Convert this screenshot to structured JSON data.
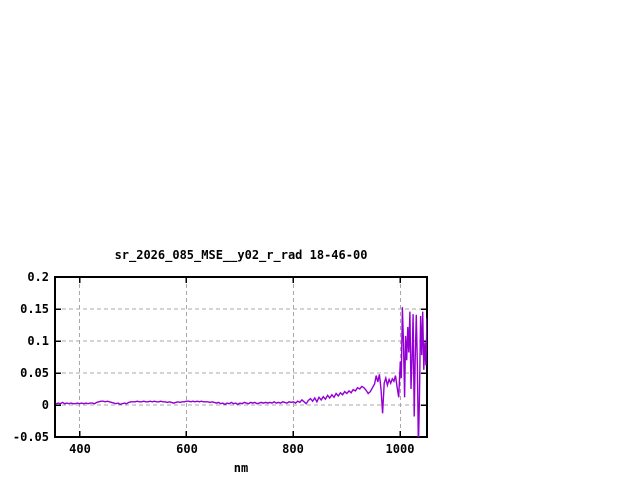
{
  "chart_data": {
    "type": "line",
    "title": "sr_2026_085_MSE__y02_r_rad 18-46-00",
    "xlabel": "nm",
    "ylabel": "",
    "xlim": [
      354,
      1050
    ],
    "ylim": [
      -0.05,
      0.2
    ],
    "grid": true,
    "legend": "none",
    "colors": {
      "line": "#9400d3",
      "grid": "#a8a8a8",
      "border": "#000000",
      "background": "#ffffff"
    },
    "x_ticks": {
      "values": [
        400,
        600,
        800,
        1000
      ],
      "labels": [
        "400",
        "600",
        "800",
        "1000"
      ]
    },
    "y_ticks": {
      "values": [
        0.2,
        0.15,
        0.1,
        0.05,
        0,
        -0.05
      ],
      "labels": [
        "0.2",
        "0.15",
        "0.1",
        "0.05",
        "0",
        "-0.05"
      ]
    },
    "series": [
      {
        "name": "sr_2026_085_MSE__y02_r_rad",
        "x": [
          356,
          360,
          364,
          368,
          372,
          376,
          380,
          384,
          388,
          392,
          396,
          400,
          404,
          408,
          412,
          416,
          420,
          424,
          428,
          432,
          436,
          440,
          444,
          448,
          452,
          456,
          460,
          464,
          468,
          472,
          476,
          480,
          484,
          488,
          492,
          496,
          500,
          504,
          508,
          512,
          516,
          520,
          524,
          528,
          532,
          536,
          540,
          544,
          548,
          552,
          556,
          560,
          564,
          568,
          572,
          576,
          580,
          584,
          588,
          592,
          596,
          600,
          604,
          608,
          612,
          616,
          620,
          624,
          628,
          632,
          636,
          640,
          644,
          648,
          652,
          656,
          660,
          664,
          668,
          672,
          676,
          680,
          684,
          688,
          692,
          696,
          700,
          704,
          708,
          712,
          716,
          720,
          724,
          728,
          732,
          736,
          740,
          744,
          748,
          752,
          756,
          760,
          764,
          768,
          772,
          776,
          780,
          784,
          788,
          792,
          796,
          800,
          804,
          808,
          812,
          816,
          820,
          824,
          828,
          832,
          836,
          840,
          844,
          848,
          852,
          856,
          860,
          864,
          868,
          872,
          876,
          880,
          884,
          888,
          892,
          896,
          900,
          904,
          908,
          912,
          916,
          920,
          924,
          928,
          932,
          936,
          940,
          944,
          948,
          952,
          955,
          958,
          961,
          964,
          967,
          970,
          973,
          976,
          979,
          982,
          985,
          988,
          991,
          994,
          997,
          1000,
          1002,
          1004,
          1006,
          1008,
          1010,
          1012,
          1014,
          1016,
          1018,
          1020,
          1022,
          1024,
          1026,
          1028,
          1030,
          1032,
          1034,
          1036,
          1038,
          1040,
          1042,
          1044,
          1046,
          1048,
          1050
        ],
        "y": [
          0.002,
          0.003,
          0.002,
          0.004,
          0.002,
          0.003,
          0.002,
          0.003,
          0.002,
          0.002,
          0.003,
          0.002,
          0.003,
          0.002,
          0.003,
          0.002,
          0.003,
          0.003,
          0.002,
          0.004,
          0.005,
          0.006,
          0.006,
          0.005,
          0.006,
          0.005,
          0.004,
          0.003,
          0.002,
          0.003,
          0.001,
          0.002,
          0.003,
          0.002,
          0.004,
          0.005,
          0.005,
          0.005,
          0.006,
          0.005,
          0.005,
          0.006,
          0.005,
          0.005,
          0.006,
          0.005,
          0.006,
          0.005,
          0.005,
          0.006,
          0.005,
          0.005,
          0.004,
          0.005,
          0.004,
          0.003,
          0.004,
          0.005,
          0.004,
          0.005,
          0.005,
          0.006,
          0.006,
          0.005,
          0.006,
          0.005,
          0.006,
          0.005,
          0.006,
          0.005,
          0.005,
          0.005,
          0.004,
          0.005,
          0.004,
          0.003,
          0.004,
          0.002,
          0.003,
          0.001,
          0.003,
          0.002,
          0.004,
          0.002,
          0.003,
          0.001,
          0.003,
          0.002,
          0.004,
          0.003,
          0.002,
          0.004,
          0.003,
          0.004,
          0.002,
          0.003,
          0.004,
          0.003,
          0.004,
          0.003,
          0.004,
          0.003,
          0.005,
          0.003,
          0.004,
          0.003,
          0.005,
          0.004,
          0.003,
          0.005,
          0.004,
          0.005,
          0.003,
          0.006,
          0.004,
          0.008,
          0.005,
          0.002,
          0.007,
          0.01,
          0.006,
          0.011,
          0.005,
          0.012,
          0.008,
          0.013,
          0.009,
          0.015,
          0.011,
          0.016,
          0.012,
          0.018,
          0.014,
          0.019,
          0.016,
          0.021,
          0.018,
          0.022,
          0.019,
          0.024,
          0.022,
          0.027,
          0.025,
          0.029,
          0.027,
          0.023,
          0.018,
          0.021,
          0.027,
          0.033,
          0.046,
          0.036,
          0.048,
          0.025,
          -0.013,
          0.034,
          0.042,
          0.031,
          0.04,
          0.034,
          0.041,
          0.037,
          0.046,
          0.028,
          0.012,
          0.068,
          0.042,
          0.153,
          0.095,
          0.012,
          0.108,
          0.07,
          0.122,
          0.082,
          0.146,
          0.025,
          0.068,
          0.142,
          -0.018,
          0.072,
          0.141,
          0.06,
          -0.07,
          0.018,
          0.139,
          0.078,
          0.146,
          0.055,
          0.098,
          0.062,
          0.136
        ]
      }
    ]
  }
}
